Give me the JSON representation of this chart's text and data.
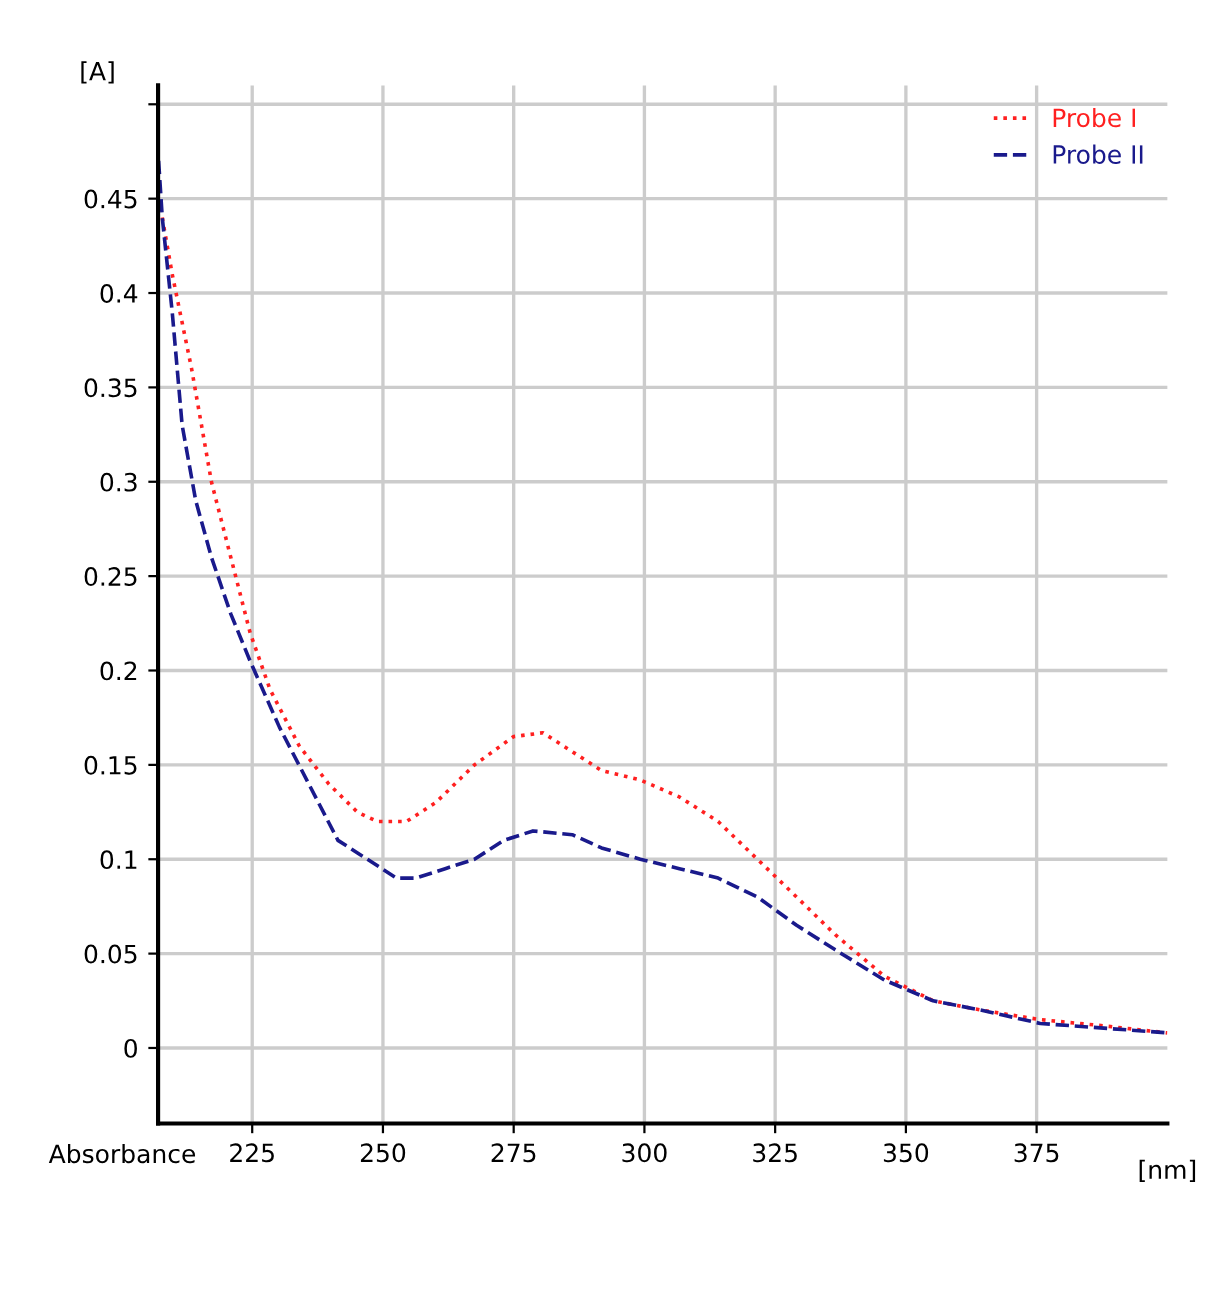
{
  "chart_data": {
    "type": "line",
    "ylabel": "[A]",
    "xlabel": "[nm]",
    "annotations": [
      "Absorbance"
    ],
    "xlim": [
      207,
      400
    ],
    "ylim": [
      -0.04,
      0.51
    ],
    "xticks": [
      225,
      250,
      275,
      300,
      325,
      350,
      375
    ],
    "yticks": [
      0,
      0.05,
      0.1,
      0.15,
      0.2,
      0.25,
      0.3,
      0.35,
      0.4,
      0.45,
      {
        "value": 0.5,
        "label": null
      }
    ],
    "grid": true,
    "legend": "top right",
    "series": [
      {
        "name": "Probe I",
        "color": "#ff2020",
        "line_style": "dotted",
        "x": [
          207.8,
          209.7,
          213.4,
          217.2,
          220.9,
          224.6,
          228.4,
          234.0,
          239.6,
          245.1,
          248.9,
          254.5,
          260.1,
          267.5,
          275.0,
          280.6,
          286.2,
          291.8,
          299.2,
          306.7,
          314.1,
          321.6,
          329.1,
          336.5,
          345.9,
          355.2,
          364.5,
          375.7,
          386.9,
          400
        ],
        "values": [
          0.44,
          0.41,
          0.36,
          0.3,
          0.26,
          0.22,
          0.19,
          0.16,
          0.14,
          0.125,
          0.12,
          0.12,
          0.13,
          0.15,
          0.165,
          0.167,
          0.157,
          0.147,
          0.142,
          0.133,
          0.12,
          0.1,
          0.08,
          0.06,
          0.038,
          0.025,
          0.02,
          0.015,
          0.012,
          0.008
        ]
      },
      {
        "name": "Probe II",
        "color": "#1a1a8c",
        "line_style": "dashed",
        "x": [
          207.1,
          207.8,
          209.7,
          211.6,
          214.2,
          217.2,
          220.9,
          224.6,
          230.2,
          235.8,
          241.4,
          247.0,
          252.6,
          256.3,
          261.9,
          267.5,
          273.1,
          278.7,
          286.2,
          291.8,
          299.2,
          306.7,
          314.1,
          321.6,
          329.1,
          336.5,
          345.9,
          355.2,
          364.5,
          375.7,
          400
        ],
        "values": [
          0.47,
          0.44,
          0.39,
          0.33,
          0.29,
          0.26,
          0.23,
          0.205,
          0.17,
          0.14,
          0.11,
          0.1,
          0.09,
          0.09,
          0.095,
          0.1,
          0.11,
          0.115,
          0.113,
          0.106,
          0.1,
          0.095,
          0.09,
          0.08,
          0.065,
          0.052,
          0.036,
          0.025,
          0.02,
          0.013,
          0.008
        ]
      }
    ]
  }
}
